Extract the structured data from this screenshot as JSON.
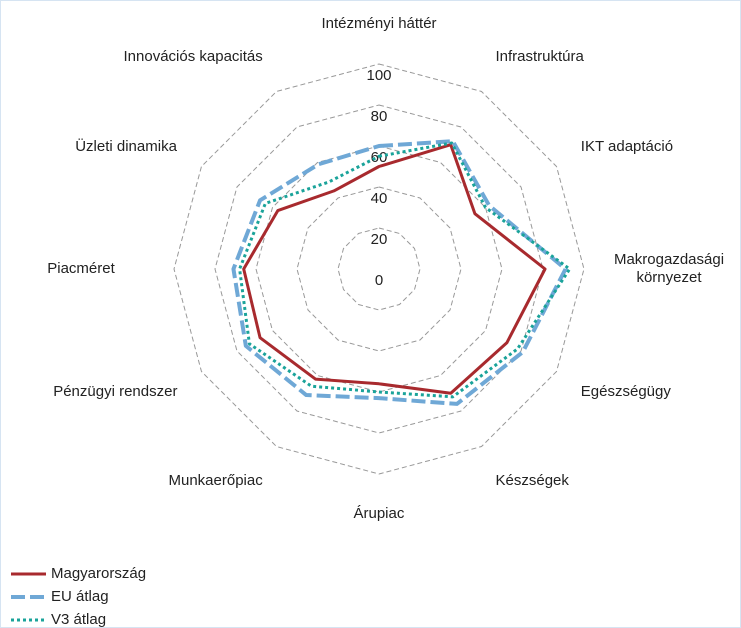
{
  "chart_data": {
    "type": "radar",
    "categories": [
      "Intézményi háttér",
      "Infrastruktúra",
      "IKT adaptáció",
      "Makrogazdasági környezet",
      "Egészségügy",
      "Készségek",
      "Árupiac",
      "Munkaerőpiac",
      "Pénzügyi rendszer",
      "Piacméret",
      "Üzleti dinamika",
      "Innovációs kapacitás"
    ],
    "series": [
      {
        "name": "Magyarország",
        "color": "#a82a2e",
        "style": "solid",
        "values": [
          50,
          70,
          54,
          81,
          72,
          70,
          56,
          62,
          67,
          66,
          57,
          44
        ]
      },
      {
        "name": "EU átlag",
        "color": "#6fa8d6",
        "style": "dashed",
        "values": [
          60,
          72,
          62,
          91,
          81,
          76,
          63,
          71,
          75,
          71,
          67,
          59
        ]
      },
      {
        "name": "V3 átlag",
        "color": "#1aa39a",
        "style": "dotted",
        "values": [
          55,
          71,
          60,
          93,
          78,
          72,
          60,
          66,
          73,
          68,
          64,
          49
        ]
      }
    ],
    "ylim": [
      0,
      100
    ],
    "yticks": [
      0,
      20,
      40,
      60,
      80,
      100
    ],
    "grid": true,
    "legend": "bottom-left"
  }
}
